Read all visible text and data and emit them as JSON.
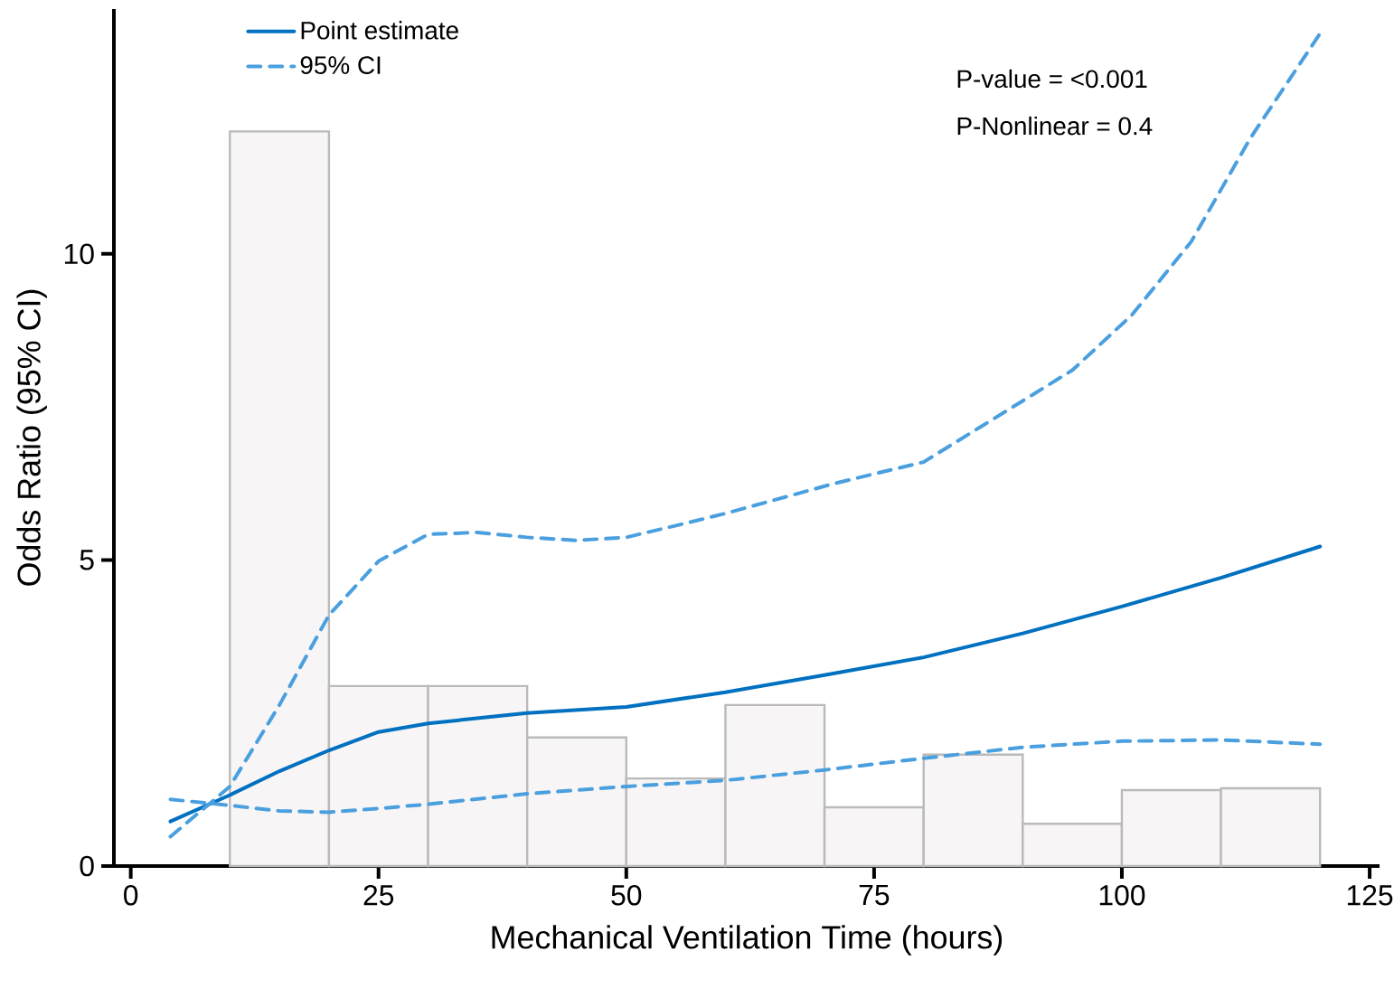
{
  "chart_data": {
    "type": "line",
    "xlabel": "Mechanical Ventilation Time (hours)",
    "ylabel": "Odds Ratio (95% CI)",
    "annotations": [
      "P-value = <0.001",
      "P-Nonlinear = 0.4"
    ],
    "xlim": [
      -1.7,
      126
    ],
    "ylim": [
      0,
      14
    ],
    "xticks": [
      0,
      25,
      50,
      75,
      100,
      125
    ],
    "yticks": [
      0,
      5,
      10
    ],
    "legend": "top left",
    "series": [
      {
        "type": "histogram",
        "color": "#f7f5f6",
        "bins": [
          10,
          20,
          30,
          40,
          50,
          60,
          70,
          80,
          90,
          100,
          110,
          120
        ],
        "values": [
          12.0,
          2.94,
          2.94,
          2.1,
          1.43,
          2.63,
          0.96,
          1.82,
          0.69,
          1.24,
          1.27
        ]
      },
      {
        "name": "Point estimate",
        "color": "#0070c0",
        "x": [
          4,
          10,
          15,
          20,
          25,
          30,
          40,
          50,
          60,
          70,
          80,
          90,
          100,
          110,
          120
        ],
        "values": [
          0.73,
          1.16,
          1.55,
          1.89,
          2.19,
          2.33,
          2.5,
          2.6,
          2.84,
          3.12,
          3.41,
          3.8,
          4.24,
          4.71,
          5.22
        ]
      },
      {
        "name": "95% CI",
        "color": "#4a9fdf",
        "line_style": "dashed",
        "x": [
          4,
          10,
          15,
          20,
          25,
          30,
          35,
          40,
          45,
          50,
          56,
          60,
          71,
          80,
          86,
          95,
          101,
          107,
          113,
          120
        ],
        "values": [
          0.48,
          1.3,
          2.63,
          4.1,
          4.98,
          5.42,
          5.45,
          5.37,
          5.32,
          5.37,
          5.6,
          5.76,
          6.25,
          6.6,
          7.2,
          8.1,
          9.0,
          10.2,
          11.9,
          13.6
        ]
      },
      {
        "color": "#4a9fdf",
        "line_style": "dashed",
        "x": [
          4,
          10,
          15,
          20,
          25,
          30,
          40,
          50,
          60,
          70,
          80,
          90,
          100,
          110,
          120
        ],
        "values": [
          1.09,
          0.99,
          0.9,
          0.88,
          0.94,
          1.01,
          1.18,
          1.3,
          1.4,
          1.57,
          1.76,
          1.94,
          2.04,
          2.06,
          1.99
        ]
      }
    ]
  }
}
